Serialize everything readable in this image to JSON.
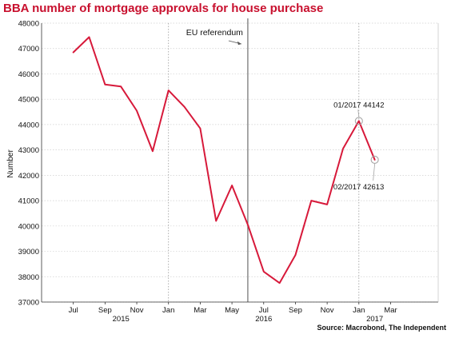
{
  "chart_data": {
    "type": "line",
    "title": "BBA number of mortgage approvals for house purchase",
    "xlabel": "",
    "ylabel": "Number",
    "ylim": [
      37000,
      48000
    ],
    "yticks": [
      37000,
      38000,
      39000,
      40000,
      41000,
      42000,
      43000,
      44000,
      45000,
      46000,
      47000,
      48000
    ],
    "x_month_ticks": [
      {
        "label": "Jul",
        "date": "2015-07"
      },
      {
        "label": "Sep",
        "date": "2015-09"
      },
      {
        "label": "Nov",
        "date": "2015-11"
      },
      {
        "label": "Jan",
        "date": "2016-01"
      },
      {
        "label": "Mar",
        "date": "2016-03"
      },
      {
        "label": "May",
        "date": "2016-05"
      },
      {
        "label": "Jul",
        "date": "2016-07"
      },
      {
        "label": "Sep",
        "date": "2016-09"
      },
      {
        "label": "Nov",
        "date": "2016-11"
      },
      {
        "label": "Jan",
        "date": "2017-01"
      },
      {
        "label": "Mar",
        "date": "2017-03"
      }
    ],
    "x_year_labels": [
      {
        "label": "2015",
        "date": "2015-10"
      },
      {
        "label": "2016",
        "date": "2016-07"
      },
      {
        "label": "2017",
        "date": "2017-02"
      }
    ],
    "year_dividers": [
      "2016-01",
      "2017-01"
    ],
    "series": [
      {
        "color": "#d7193a",
        "points": [
          {
            "x": "2015-07",
            "y": 46850
          },
          {
            "x": "2015-08",
            "y": 47450
          },
          {
            "x": "2015-09",
            "y": 45580
          },
          {
            "x": "2015-10",
            "y": 45500
          },
          {
            "x": "2015-11",
            "y": 44550
          },
          {
            "x": "2015-12",
            "y": 42950
          },
          {
            "x": "2016-01",
            "y": 45350
          },
          {
            "x": "2016-02",
            "y": 44700
          },
          {
            "x": "2016-03",
            "y": 43850
          },
          {
            "x": "2016-04",
            "y": 40200
          },
          {
            "x": "2016-05",
            "y": 41600
          },
          {
            "x": "2016-06",
            "y": 40050
          },
          {
            "x": "2016-07",
            "y": 38200
          },
          {
            "x": "2016-08",
            "y": 37750
          },
          {
            "x": "2016-09",
            "y": 38850
          },
          {
            "x": "2016-10",
            "y": 41000
          },
          {
            "x": "2016-11",
            "y": 40850
          },
          {
            "x": "2016-12",
            "y": 43050
          },
          {
            "x": "2017-01",
            "y": 44142
          },
          {
            "x": "2017-02",
            "y": 42613
          }
        ]
      }
    ],
    "event_line": {
      "date": "2016-06",
      "label": "EU referendum"
    },
    "annotations": [
      {
        "text": "01/2017 44142",
        "x": "2017-01",
        "y": 44142
      },
      {
        "text": "02/2017 42613",
        "x": "2017-02",
        "y": 42613
      }
    ],
    "grid": true,
    "source": "Source: Macrobond, The Independent"
  }
}
